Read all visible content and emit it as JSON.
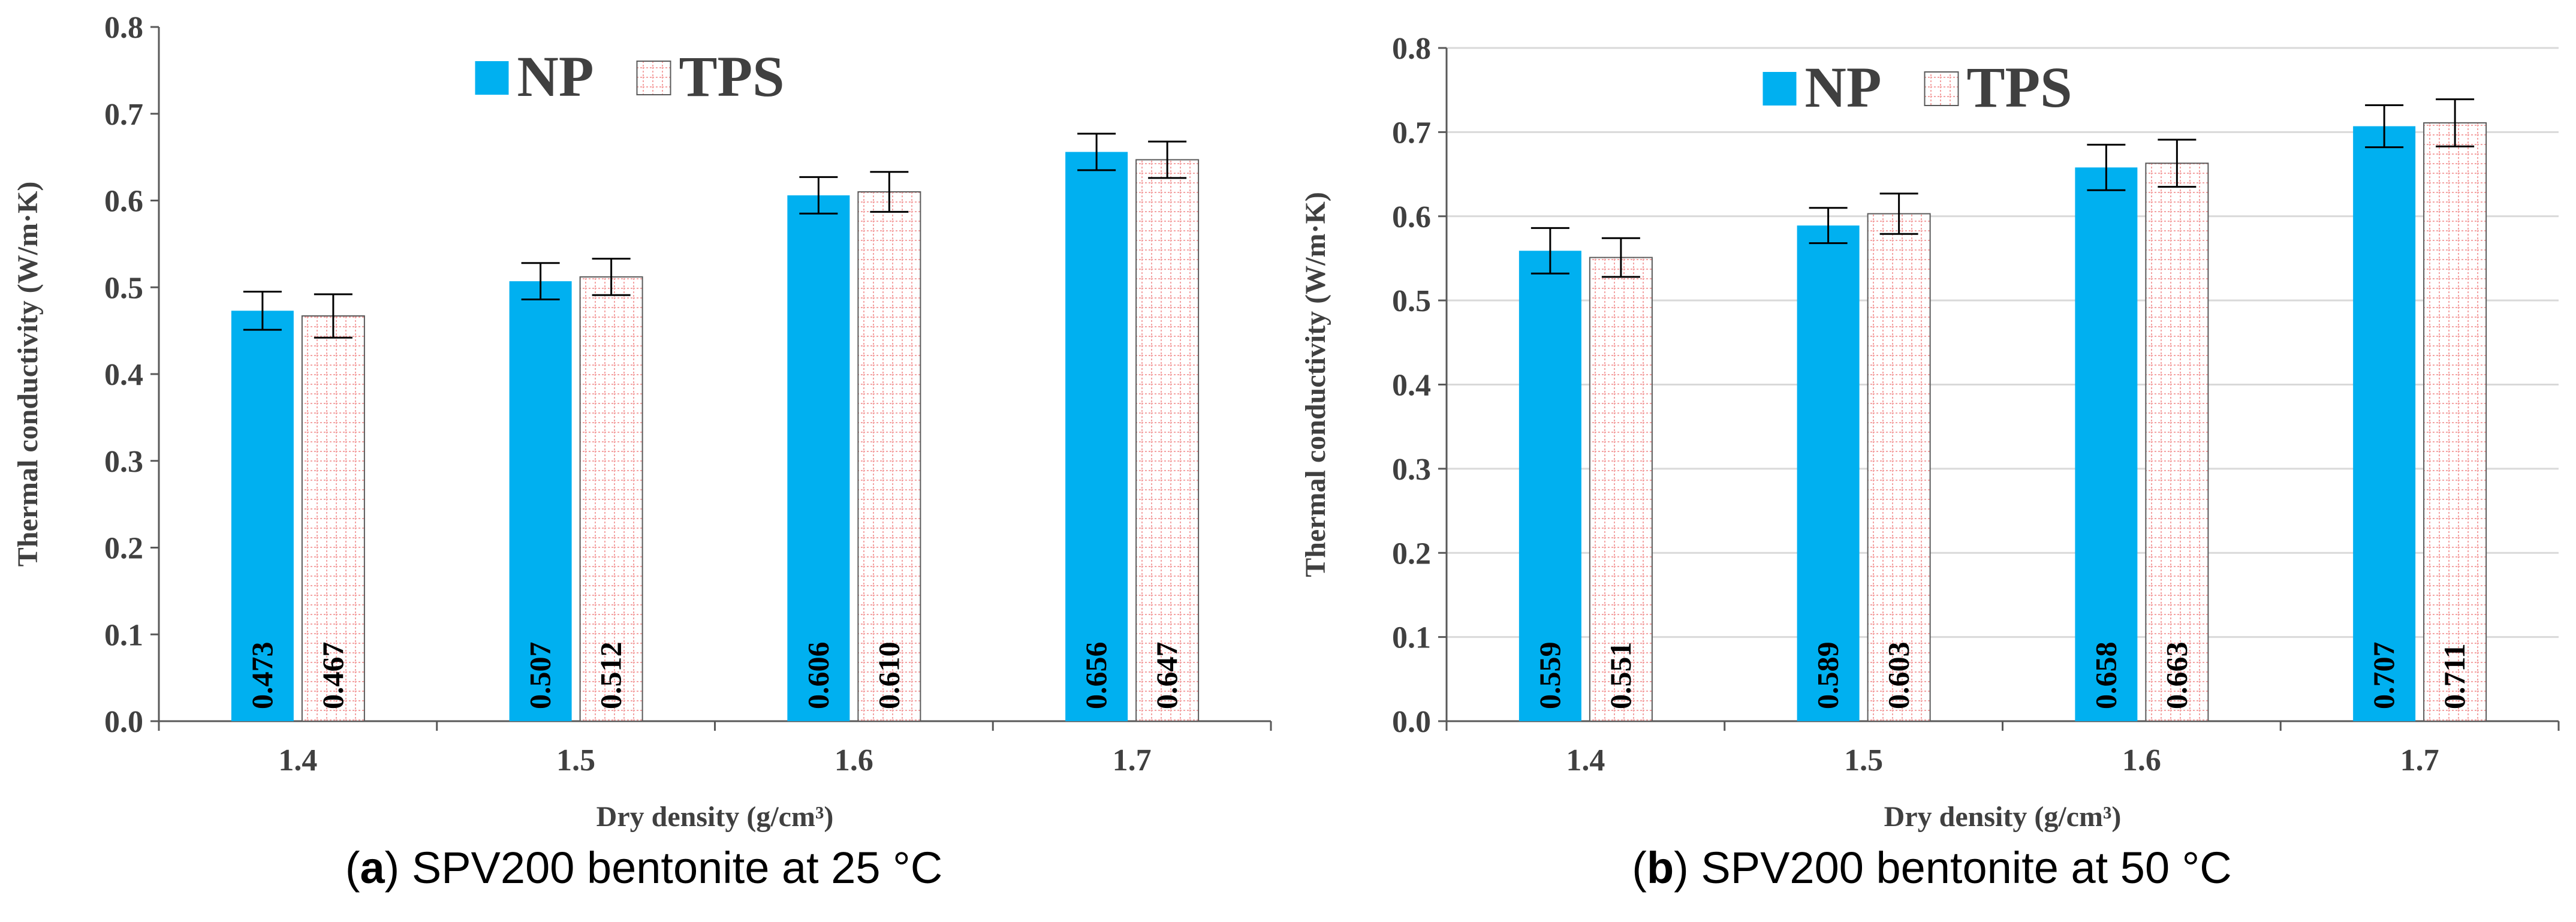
{
  "colors": {
    "np": "#00B0F0",
    "tps_grid": "#F4A3A3",
    "axis": "#595959",
    "grid": "#D9D9D9",
    "text": "#404040"
  },
  "icons": {
    "np_swatch": "solid-square-icon",
    "tps_swatch": "dotted-grid-square-icon"
  },
  "chart_data": [
    {
      "id": "a",
      "type": "bar",
      "caption_letter": "a",
      "caption_text": "SPV200 bentonite at 25 °C",
      "categories": [
        "1.4",
        "1.5",
        "1.6",
        "1.7"
      ],
      "xlabel": "Dry density (g/cm³)",
      "ylabel": "Thermal conductivity (W/m·K)",
      "ylim": [
        0,
        0.8
      ],
      "yticks": [
        "0.0",
        "0.1",
        "0.2",
        "0.3",
        "0.4",
        "0.5",
        "0.6",
        "0.7",
        "0.8"
      ],
      "grid": false,
      "legend": "top-center",
      "series": [
        {
          "name": "NP",
          "values": [
            0.473,
            0.507,
            0.606,
            0.656
          ],
          "labels": [
            "0.473",
            "0.507",
            "0.606",
            "0.656"
          ],
          "errors": [
            0.022,
            0.021,
            0.021,
            0.021
          ]
        },
        {
          "name": "TPS",
          "values": [
            0.467,
            0.512,
            0.61,
            0.647
          ],
          "labels": [
            "0.467",
            "0.512",
            "0.610",
            "0.647"
          ],
          "errors": [
            0.025,
            0.021,
            0.023,
            0.021
          ]
        }
      ]
    },
    {
      "id": "b",
      "type": "bar",
      "caption_letter": "b",
      "caption_text": "SPV200 bentonite at 50 °C",
      "categories": [
        "1.4",
        "1.5",
        "1.6",
        "1.7"
      ],
      "xlabel": "Dry density (g/cm³)",
      "ylabel": "Thermal conductivity (W/m·K)",
      "ylim": [
        0,
        0.8
      ],
      "yticks": [
        "0.0",
        "0.1",
        "0.2",
        "0.3",
        "0.4",
        "0.5",
        "0.6",
        "0.7",
        "0.8"
      ],
      "grid": true,
      "legend": "top-center",
      "series": [
        {
          "name": "NP",
          "values": [
            0.559,
            0.589,
            0.658,
            0.707
          ],
          "labels": [
            "0.559",
            "0.589",
            "0.658",
            "0.707"
          ],
          "errors": [
            0.027,
            0.021,
            0.027,
            0.025
          ]
        },
        {
          "name": "TPS",
          "values": [
            0.551,
            0.603,
            0.663,
            0.711
          ],
          "labels": [
            "0.551",
            "0.603",
            "0.663",
            "0.711"
          ],
          "errors": [
            0.023,
            0.024,
            0.028,
            0.028
          ]
        }
      ]
    }
  ]
}
